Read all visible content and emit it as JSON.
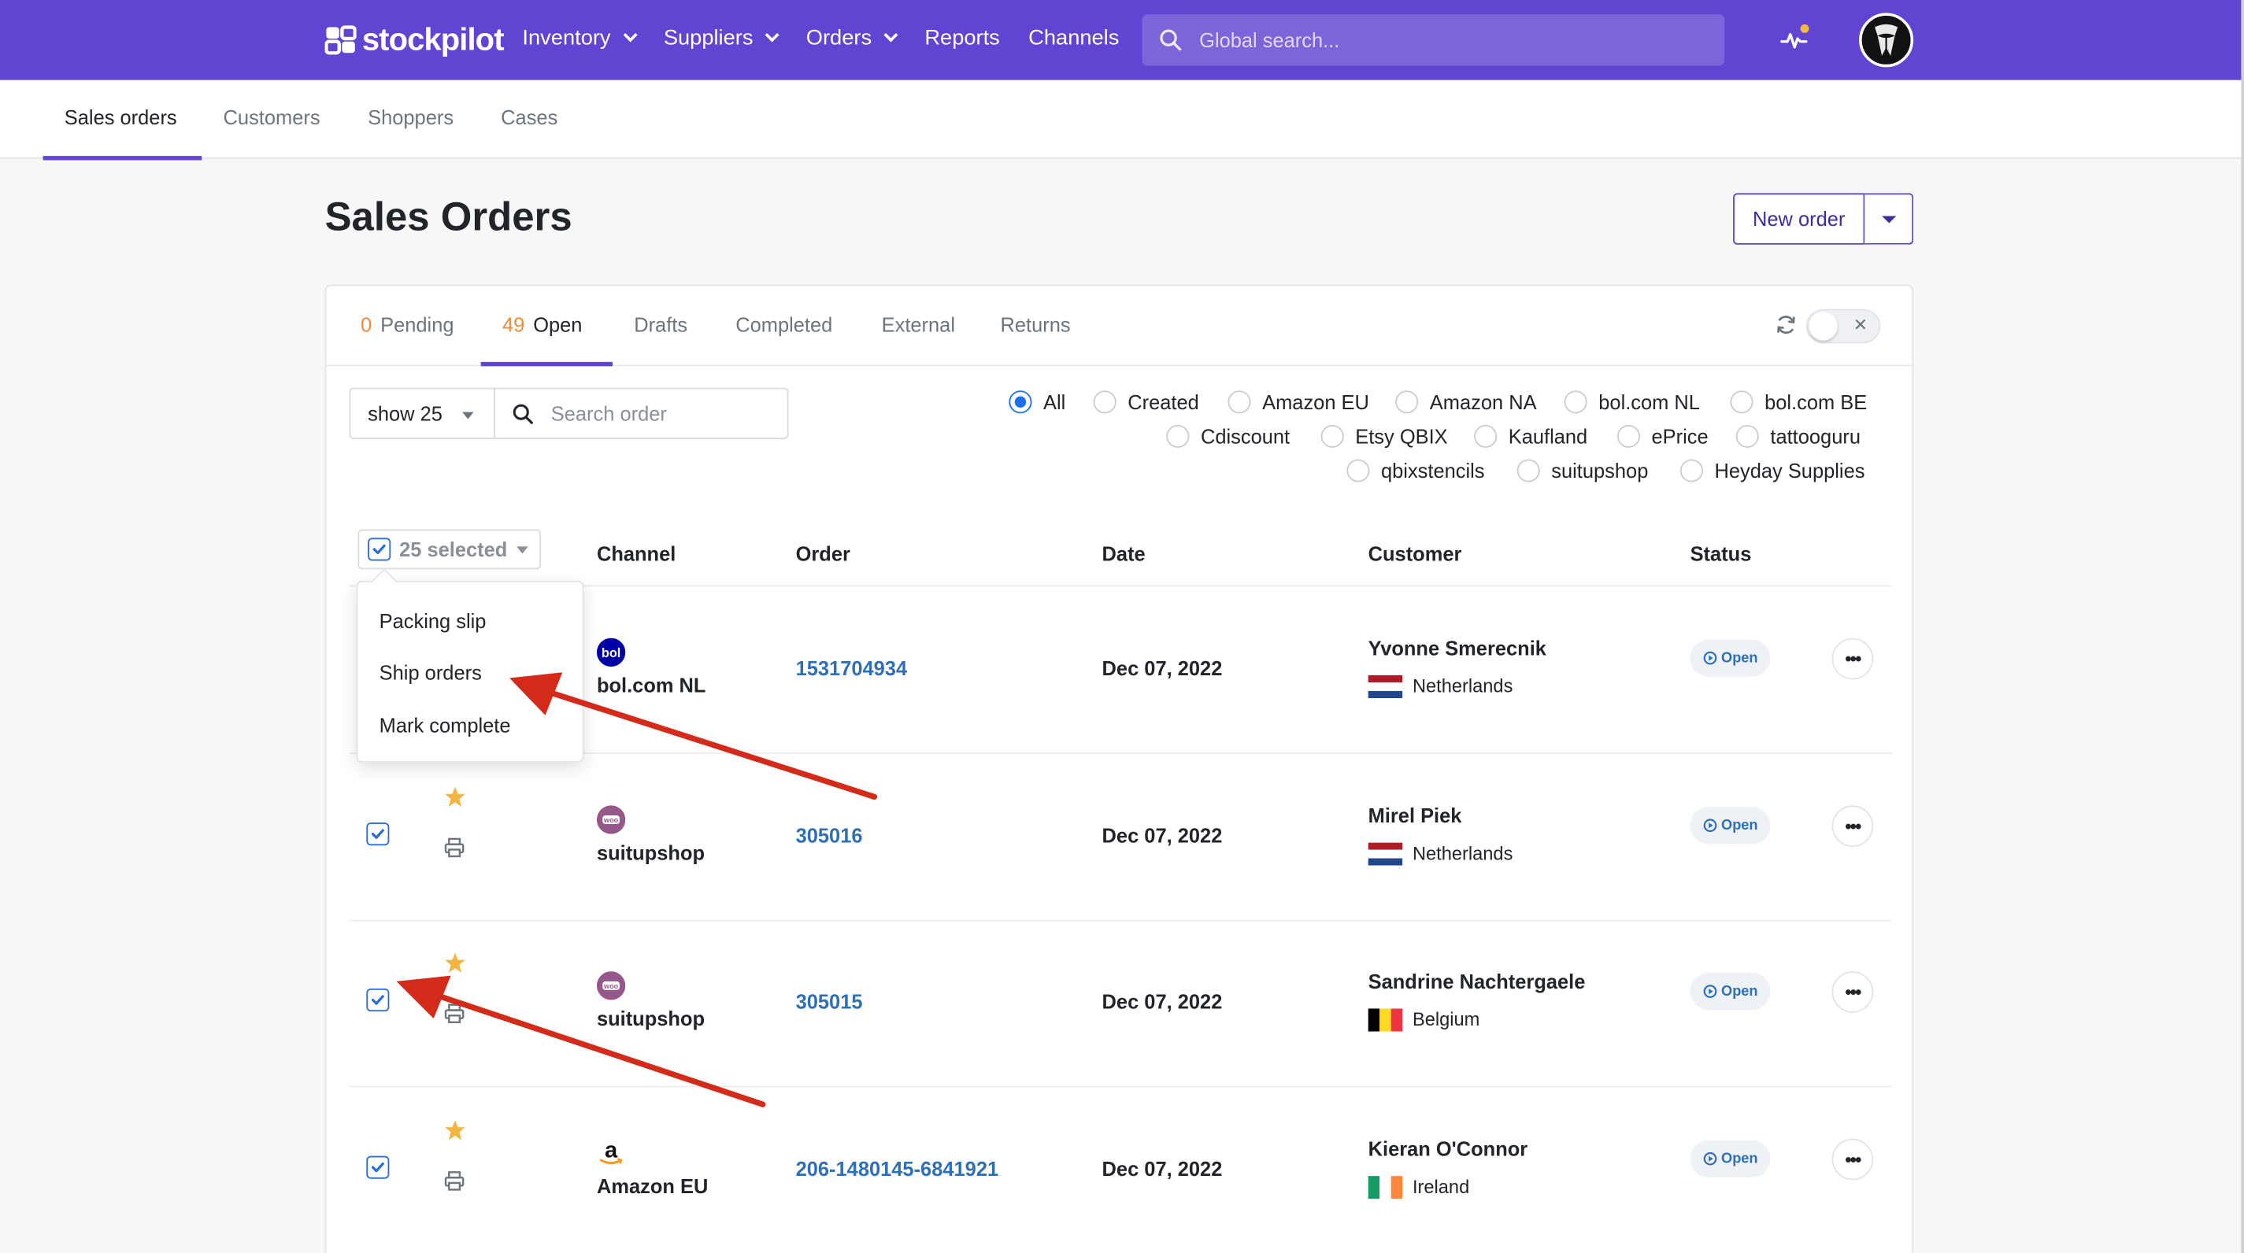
{
  "brand": {
    "name": "stockpilot"
  },
  "nav": {
    "items": [
      {
        "label": "Inventory",
        "has_caret": true
      },
      {
        "label": "Suppliers",
        "has_caret": true
      },
      {
        "label": "Orders",
        "has_caret": true
      },
      {
        "label": "Reports",
        "has_caret": false
      },
      {
        "label": "Channels",
        "has_caret": false
      }
    ],
    "search_placeholder": "Global search...",
    "activity_icon": "activity-pulse-icon",
    "notification_color": "#f5b942"
  },
  "subnav": {
    "tabs": [
      {
        "label": "Sales orders",
        "active": true
      },
      {
        "label": "Customers",
        "active": false
      },
      {
        "label": "Shoppers",
        "active": false
      },
      {
        "label": "Cases",
        "active": false
      }
    ]
  },
  "page": {
    "title": "Sales Orders",
    "new_order_label": "New order"
  },
  "order_tabs": [
    {
      "count": "0",
      "label": "Pending",
      "active": false
    },
    {
      "count": "49",
      "label": "Open",
      "active": true
    },
    {
      "count": "",
      "label": "Drafts",
      "active": false
    },
    {
      "count": "",
      "label": "Completed",
      "active": false
    },
    {
      "count": "",
      "label": "External",
      "active": false
    },
    {
      "count": "",
      "label": "Returns",
      "active": false
    }
  ],
  "filters": {
    "show_label": "show 25",
    "search_placeholder": "Search order",
    "channels": [
      {
        "label": "All",
        "checked": true
      },
      {
        "label": "Created",
        "checked": false
      },
      {
        "label": "Amazon EU",
        "checked": false
      },
      {
        "label": "Amazon NA",
        "checked": false
      },
      {
        "label": "bol.com NL",
        "checked": false
      },
      {
        "label": "bol.com BE",
        "checked": false
      },
      {
        "label": "Cdiscount",
        "checked": false
      },
      {
        "label": "Etsy QBIX",
        "checked": false
      },
      {
        "label": "Kaufland",
        "checked": false
      },
      {
        "label": "ePrice",
        "checked": false
      },
      {
        "label": "tattooguru",
        "checked": false
      },
      {
        "label": "qbixstencils",
        "checked": false
      },
      {
        "label": "suitupshop",
        "checked": false
      },
      {
        "label": "Heyday Supplies",
        "checked": false
      }
    ]
  },
  "table": {
    "selected_label": "25 selected",
    "columns": [
      "Channel",
      "Order",
      "Date",
      "Customer",
      "Status"
    ],
    "rows": [
      {
        "channel": "bol.com NL",
        "channel_logo": "bol",
        "order": "1531704934",
        "date": "Dec 07, 2022",
        "customer": "Yvonne Smerecnik",
        "country": "Netherlands",
        "flag": "nl",
        "status": "Open",
        "checked": true,
        "starred": false
      },
      {
        "channel": "suitupshop",
        "channel_logo": "woo",
        "order": "305016",
        "date": "Dec 07, 2022",
        "customer": "Mirel Piek",
        "country": "Netherlands",
        "flag": "nl",
        "status": "Open",
        "checked": true,
        "starred": true
      },
      {
        "channel": "suitupshop",
        "channel_logo": "woo",
        "order": "305015",
        "date": "Dec 07, 2022",
        "customer": "Sandrine Nachtergaele",
        "country": "Belgium",
        "flag": "be",
        "status": "Open",
        "checked": true,
        "starred": true
      },
      {
        "channel": "Amazon EU",
        "channel_logo": "amazon",
        "order": "206-1480145-6841921",
        "date": "Dec 07, 2022",
        "customer": "Kieran O'Connor",
        "country": "Ireland",
        "flag": "ie",
        "status": "Open",
        "checked": true,
        "starred": true
      }
    ]
  },
  "bulk_menu": {
    "items": [
      "Packing slip",
      "Ship orders",
      "Mark complete"
    ]
  },
  "colors": {
    "brand": "#6144d1",
    "link": "#2e6fb5",
    "count": "#f08b3a",
    "annotation_arrow": "#d42a1a",
    "star": "#f2b541"
  }
}
